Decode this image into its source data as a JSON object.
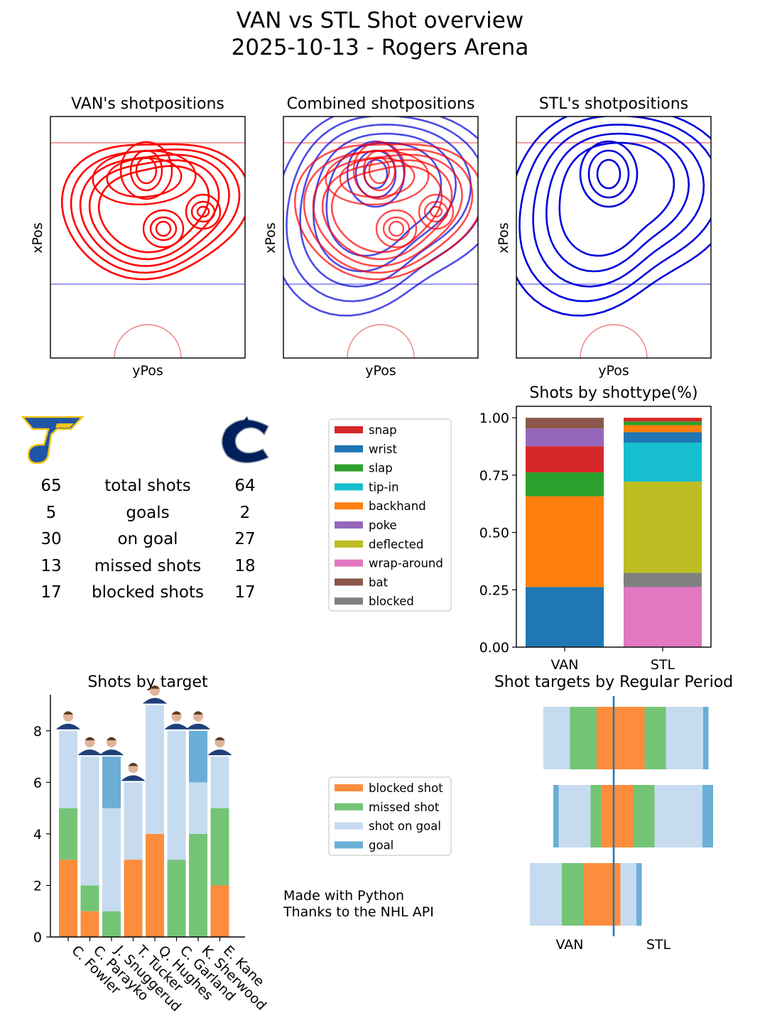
{
  "header": {
    "title_line1": "VAN vs STL Shot overview",
    "title_line2": "2025-10-13 - Rogers Arena"
  },
  "rink_panels": [
    {
      "title": "VAN's shotpositions",
      "xlabel": "yPos",
      "ylabel": "xPos"
    },
    {
      "title": "Combined shotpositions",
      "xlabel": "yPos",
      "ylabel": "xPos"
    },
    {
      "title": "STL's shotpositions",
      "xlabel": "yPos",
      "ylabel": "xPos"
    }
  ],
  "colors": {
    "van": "#ff0000",
    "stl": "#0000dd",
    "rink_red": "#f08080",
    "rink_blue": "#7b7bf0"
  },
  "logos": {
    "left": "stl-blues-note-logo",
    "right": "vancouver-canucks-orca-logo"
  },
  "stats": [
    {
      "left": "65",
      "label": "total shots",
      "right": "64"
    },
    {
      "left": "5",
      "label": "goals",
      "right": "2"
    },
    {
      "left": "30",
      "label": "on goal",
      "right": "27"
    },
    {
      "left": "13",
      "label": "missed shots",
      "right": "18"
    },
    {
      "left": "17",
      "label": "blocked shots",
      "right": "17"
    }
  ],
  "credits": {
    "line1": "Made with Python",
    "line2": "Thanks to the NHL API"
  },
  "chart_data": [
    {
      "type": "bar",
      "stacked": true,
      "title": "Shots by shottype(%)",
      "categories": [
        "VAN",
        "STL"
      ],
      "ylim": [
        0,
        1.05
      ],
      "yticks": [
        "0.00",
        "0.25",
        "0.50",
        "0.75",
        "1.00"
      ],
      "legend": [
        {
          "name": "snap",
          "color": "#d62728"
        },
        {
          "name": "wrist",
          "color": "#1f77b4"
        },
        {
          "name": "slap",
          "color": "#2ca02c"
        },
        {
          "name": "tip-in",
          "color": "#17becf"
        },
        {
          "name": "backhand",
          "color": "#ff7f0e"
        },
        {
          "name": "poke",
          "color": "#9467bd"
        },
        {
          "name": "deflected",
          "color": "#bcbd22"
        },
        {
          "name": "wrap-around",
          "color": "#e377c2"
        },
        {
          "name": "bat",
          "color": "#8c564b"
        },
        {
          "name": "blocked",
          "color": "#7f7f7f"
        }
      ],
      "stacks": [
        {
          "category": "VAN",
          "segments": [
            {
              "type": "wrist",
              "value": 0.262
            },
            {
              "type": "backhand",
              "value": 0.396
            },
            {
              "type": "slap",
              "value": 0.104
            },
            {
              "type": "snap",
              "value": 0.114
            },
            {
              "type": "poke",
              "value": 0.077
            },
            {
              "type": "bat",
              "value": 0.047
            }
          ]
        },
        {
          "category": "STL",
          "segments": [
            {
              "type": "wrap-around",
              "value": 0.262
            },
            {
              "type": "blocked",
              "value": 0.062
            },
            {
              "type": "deflected",
              "value": 0.398
            },
            {
              "type": "tip-in",
              "value": 0.17
            },
            {
              "type": "wrist",
              "value": 0.045
            },
            {
              "type": "backhand",
              "value": 0.031
            },
            {
              "type": "slap",
              "value": 0.016
            },
            {
              "type": "snap",
              "value": 0.016
            }
          ]
        }
      ]
    },
    {
      "type": "bar",
      "stacked": true,
      "title": "Shots by target",
      "categories": [
        "C. Fowler",
        "C. Parayko",
        "J. Snuggerud",
        "T. Tucker",
        "Q. Hughes",
        "C. Garland",
        "K. Sherwood",
        "E. Kane"
      ],
      "ylim": [
        0,
        9.4
      ],
      "yticks": [
        "0",
        "2",
        "4",
        "6",
        "8"
      ],
      "legend": [
        {
          "name": "blocked shot",
          "color": "#fd8d3c"
        },
        {
          "name": "missed shot",
          "color": "#74c476"
        },
        {
          "name": "shot on goal",
          "color": "#c6dbef"
        },
        {
          "name": "goal",
          "color": "#6baed6"
        }
      ],
      "series": [
        {
          "name": "blocked shot",
          "values": [
            3,
            1,
            0,
            3,
            4,
            0,
            0,
            2
          ]
        },
        {
          "name": "missed shot",
          "values": [
            2,
            1,
            1,
            0,
            0,
            3,
            4,
            3
          ]
        },
        {
          "name": "shot on goal",
          "values": [
            3,
            5,
            4,
            3,
            5,
            5,
            2,
            2
          ]
        },
        {
          "name": "goal",
          "values": [
            0,
            0,
            2,
            0,
            0,
            0,
            2,
            0
          ]
        }
      ]
    },
    {
      "type": "bar",
      "orientation": "horizontal",
      "title": "Shot targets by Regular Period",
      "labels": [
        "VAN",
        "STL"
      ],
      "rows": [
        {
          "segments": [
            {
              "type": "shot on goal",
              "value": 5
            },
            {
              "type": "missed shot",
              "value": 5
            },
            {
              "type": "blocked shot",
              "value": 9
            },
            {
              "type": "missed shot",
              "value": 4
            },
            {
              "type": "shot on goal",
              "value": 7
            },
            {
              "type": "goal",
              "value": 1
            }
          ]
        },
        {
          "segments": [
            {
              "type": "goal",
              "value": 1
            },
            {
              "type": "shot on goal",
              "value": 6
            },
            {
              "type": "missed shot",
              "value": 2
            },
            {
              "type": "blocked shot",
              "value": 6
            },
            {
              "type": "missed shot",
              "value": 4
            },
            {
              "type": "shot on goal",
              "value": 9
            },
            {
              "type": "goal",
              "value": 2
            }
          ]
        },
        {
          "segments": [
            {
              "type": "shot on goal",
              "value": 6
            },
            {
              "type": "missed shot",
              "value": 4
            },
            {
              "type": "blocked shot",
              "value": 7
            },
            {
              "type": "shot on goal",
              "value": 3
            },
            {
              "type": "goal",
              "value": 1
            }
          ]
        }
      ]
    }
  ]
}
